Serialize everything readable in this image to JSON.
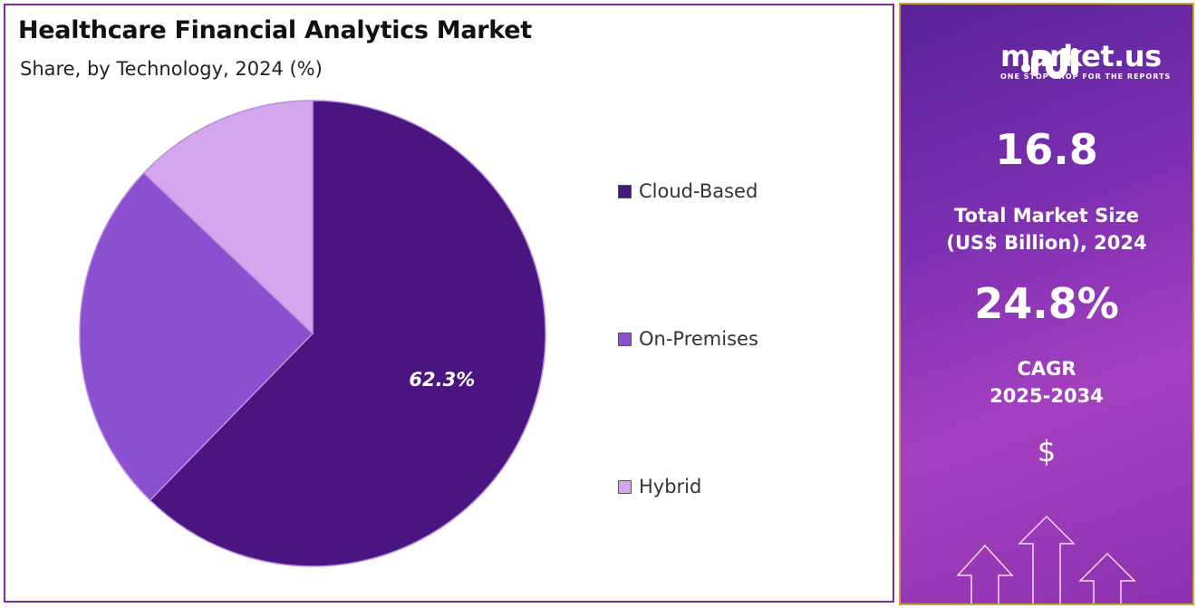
{
  "chart_data": {
    "type": "pie",
    "title": "Healthcare Financial Analytics Market",
    "subtitle": "Share, by Technology, 2024 (%)",
    "categories": [
      "Cloud-Based",
      "On-Premises",
      "Hybrid"
    ],
    "values": [
      62.3,
      24.8,
      12.9
    ],
    "colors": [
      "#4a1580",
      "#8b4fcf",
      "#d4a6ee"
    ],
    "data_labels": [
      "62.3%",
      "",
      ""
    ],
    "legend_position": "right"
  },
  "side_panel": {
    "logo_name": "market.us",
    "logo_tagline": "ONE STOP SHOP FOR THE REPORTS",
    "market_size": "16.8",
    "market_size_label_1": "Total Market Size",
    "market_size_label_2": "(US$ Billion), 2024",
    "cagr": "24.8%",
    "cagr_label_1": "CAGR",
    "cagr_label_2": "2025-2034",
    "currency_symbol": "$"
  }
}
